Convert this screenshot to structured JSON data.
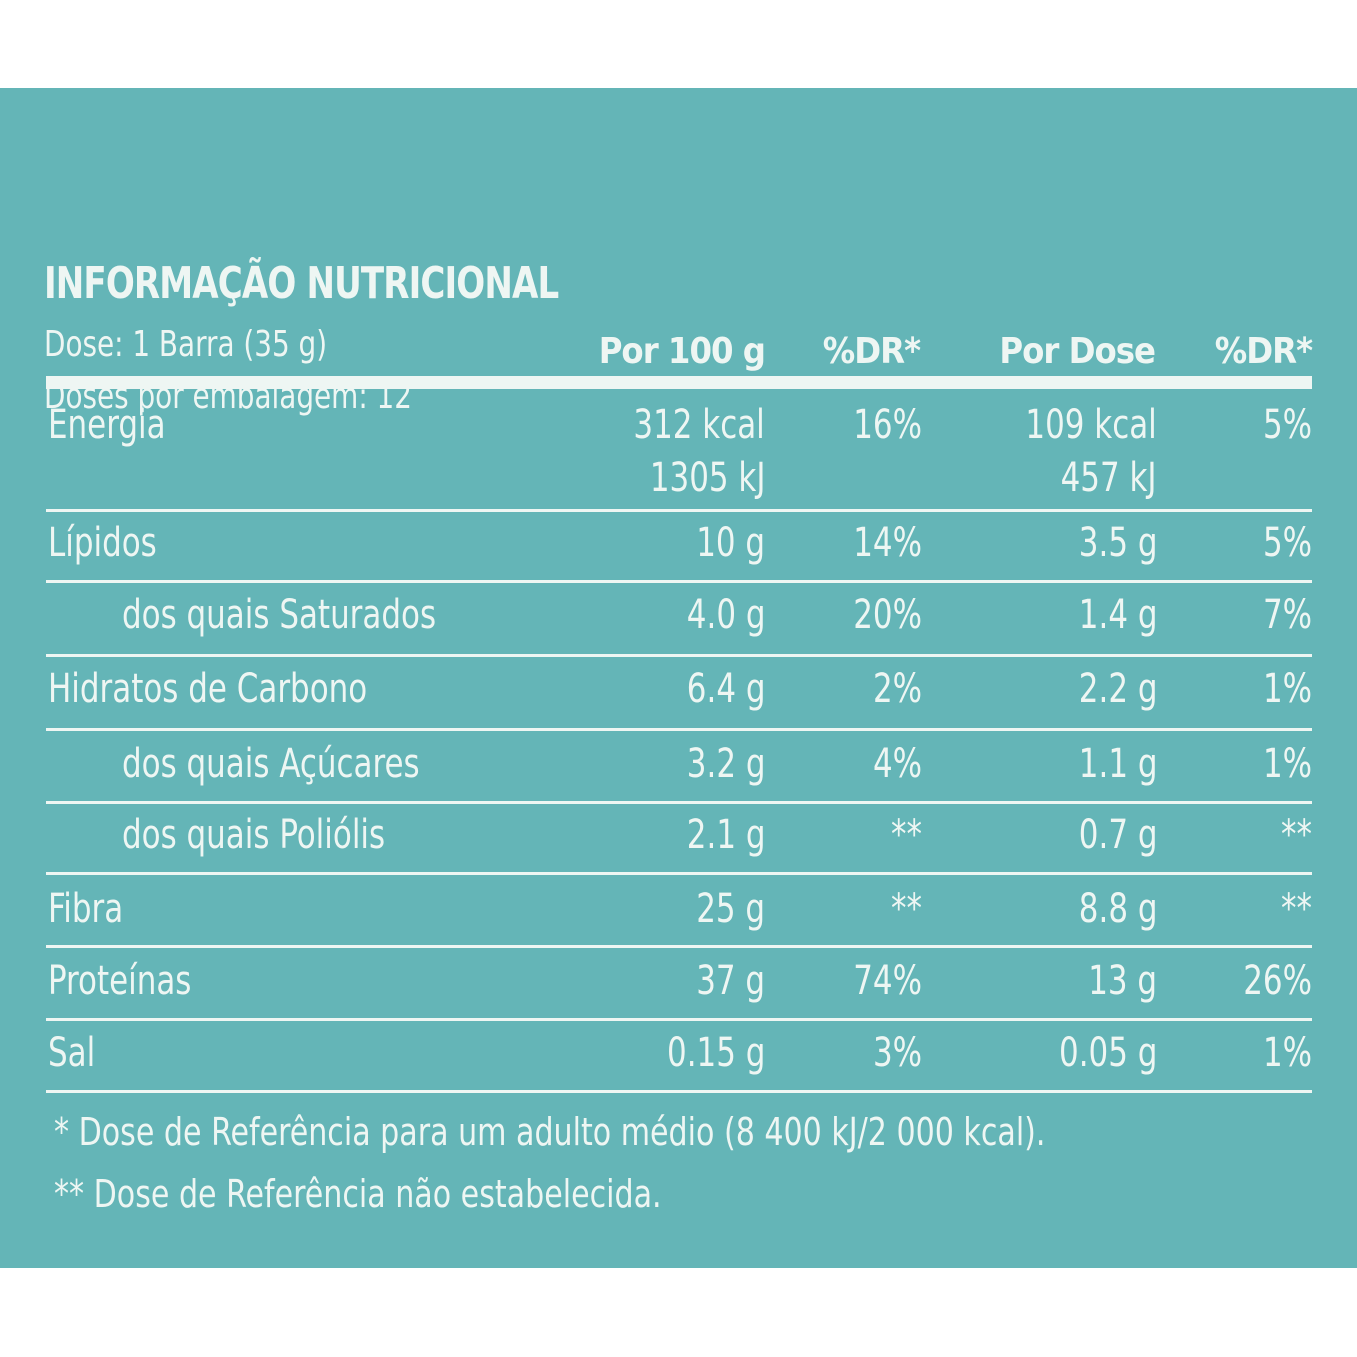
{
  "label": {
    "title": "INFORMAÇÃO NUTRICIONAL",
    "serving": "Dose: 1 Barra (35 g)",
    "servings_per_pack": "Doses por embalagem: 12"
  },
  "columns": {
    "per100": "Por 100 g",
    "dr1": "%DR*",
    "perdose": "Por Dose",
    "dr2": "%DR*"
  },
  "rows": [
    {
      "name": "Energia",
      "per100": "312 kcal",
      "per100_b": "1305 kJ",
      "dr1": "16%",
      "perdose": "109 kcal",
      "perdose_b": "457 kJ",
      "dr2": "5%"
    },
    {
      "name": "Lípidos",
      "per100": "10 g",
      "dr1": "14%",
      "perdose": "3.5 g",
      "dr2": "5%"
    },
    {
      "name": "dos quais Saturados",
      "per100": "4.0 g",
      "dr1": "20%",
      "perdose": "1.4 g",
      "dr2": "7%"
    },
    {
      "name": "Hidratos de Carbono",
      "per100": "6.4 g",
      "dr1": "2%",
      "perdose": "2.2 g",
      "dr2": "1%"
    },
    {
      "name": "dos quais Açúcares",
      "per100": "3.2 g",
      "dr1": "4%",
      "perdose": "1.1 g",
      "dr2": "1%"
    },
    {
      "name": "dos quais Poliólis",
      "per100": "2.1 g",
      "dr1": "**",
      "perdose": "0.7 g",
      "dr2": "**"
    },
    {
      "name": "Fibra",
      "per100": "25 g",
      "dr1": "**",
      "perdose": "8.8 g",
      "dr2": "**"
    },
    {
      "name": "Proteínas",
      "per100": "37 g",
      "dr1": "74%",
      "perdose": "13 g",
      "dr2": "26%"
    },
    {
      "name": "Sal",
      "per100": "0.15 g",
      "dr1": "3%",
      "perdose": "0.05 g",
      "dr2": "1%"
    }
  ],
  "footnotes": {
    "one": "* Dose de Referência para um adulto médio (8 400 kJ/2 000 kcal).",
    "two": "** Dose de Referência não estabelecida."
  },
  "colors": {
    "background": "#64b5b7",
    "text": "#eef6f3"
  }
}
